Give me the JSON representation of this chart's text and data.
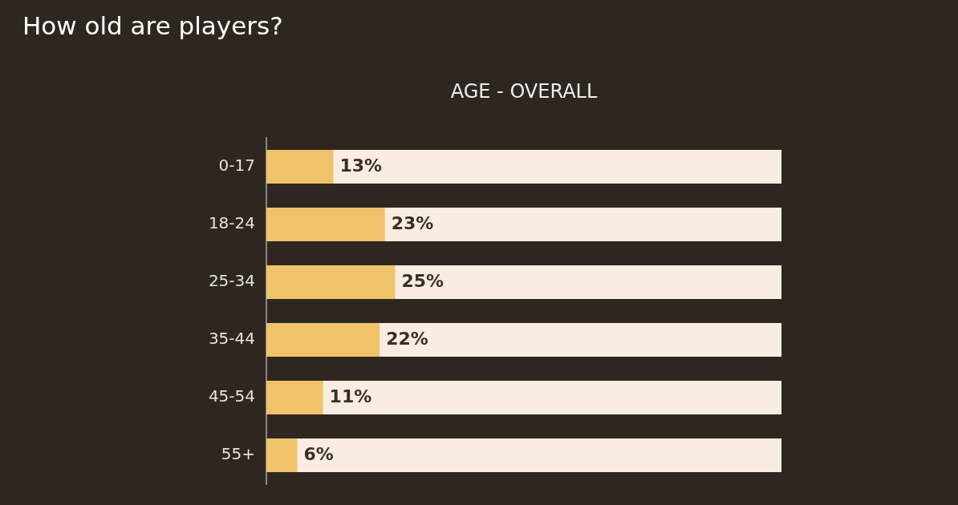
{
  "chart_data": {
    "type": "bar",
    "orientation": "horizontal",
    "title": "How old are players?",
    "subtitle": "AGE - OVERALL",
    "categories": [
      "0-17",
      "18-24",
      "25-34",
      "35-44",
      "45-54",
      "55+"
    ],
    "values": [
      13,
      23,
      25,
      22,
      11,
      6
    ],
    "value_labels": [
      "13%",
      "23%",
      "25%",
      "22%",
      "11%",
      "6%"
    ],
    "color": "#f0c36a",
    "xlim": [
      0,
      100
    ],
    "tick_labels": "y"
  }
}
